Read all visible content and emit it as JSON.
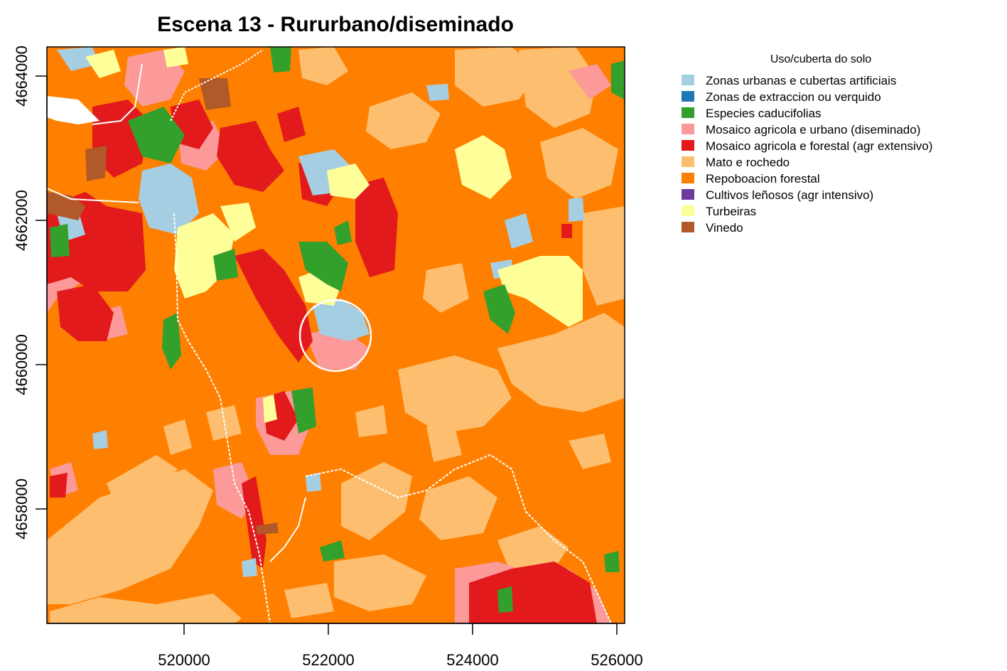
{
  "title": "Escena 13 - Rururbano/diseminado",
  "axes": {
    "x_ticks": [
      "520000",
      "522000",
      "524000",
      "526000"
    ],
    "y_ticks": [
      "4658000",
      "4660000",
      "4662000",
      "4664000"
    ],
    "x_range": [
      518100,
      526100
    ],
    "y_range": [
      4656350,
      4664450
    ]
  },
  "legend": {
    "title": "Uso/cuberta do solo",
    "items": [
      {
        "label": "Zonas urbanas e cubertas artificiais",
        "color": "#a6cee3"
      },
      {
        "label": "Zonas de extraccion ou verquido",
        "color": "#1f78b4"
      },
      {
        "label": "Especies caducifolias",
        "color": "#33a02c"
      },
      {
        "label": "Mosaico agricola e urbano (diseminado)",
        "color": "#fb9a99"
      },
      {
        "label": "Mosaico agricola e forestal (agr extensivo)",
        "color": "#e31a1c"
      },
      {
        "label": "Mato e rochedo",
        "color": "#fdbf6f"
      },
      {
        "label": "Repoboacion forestal",
        "color": "#ff7f00"
      },
      {
        "label": "Cultivos leñosos (agr intensivo)",
        "color": "#6a3d9a"
      },
      {
        "label": "Turbeiras",
        "color": "#ffff99"
      },
      {
        "label": "Vinedo",
        "color": "#b15928"
      }
    ]
  },
  "map": {
    "background_class": "Repoboacion forestal",
    "highlight_circle": {
      "center_x": 522100,
      "center_y": 4660400,
      "radius_m": 500,
      "color": "#ffffff"
    }
  }
}
